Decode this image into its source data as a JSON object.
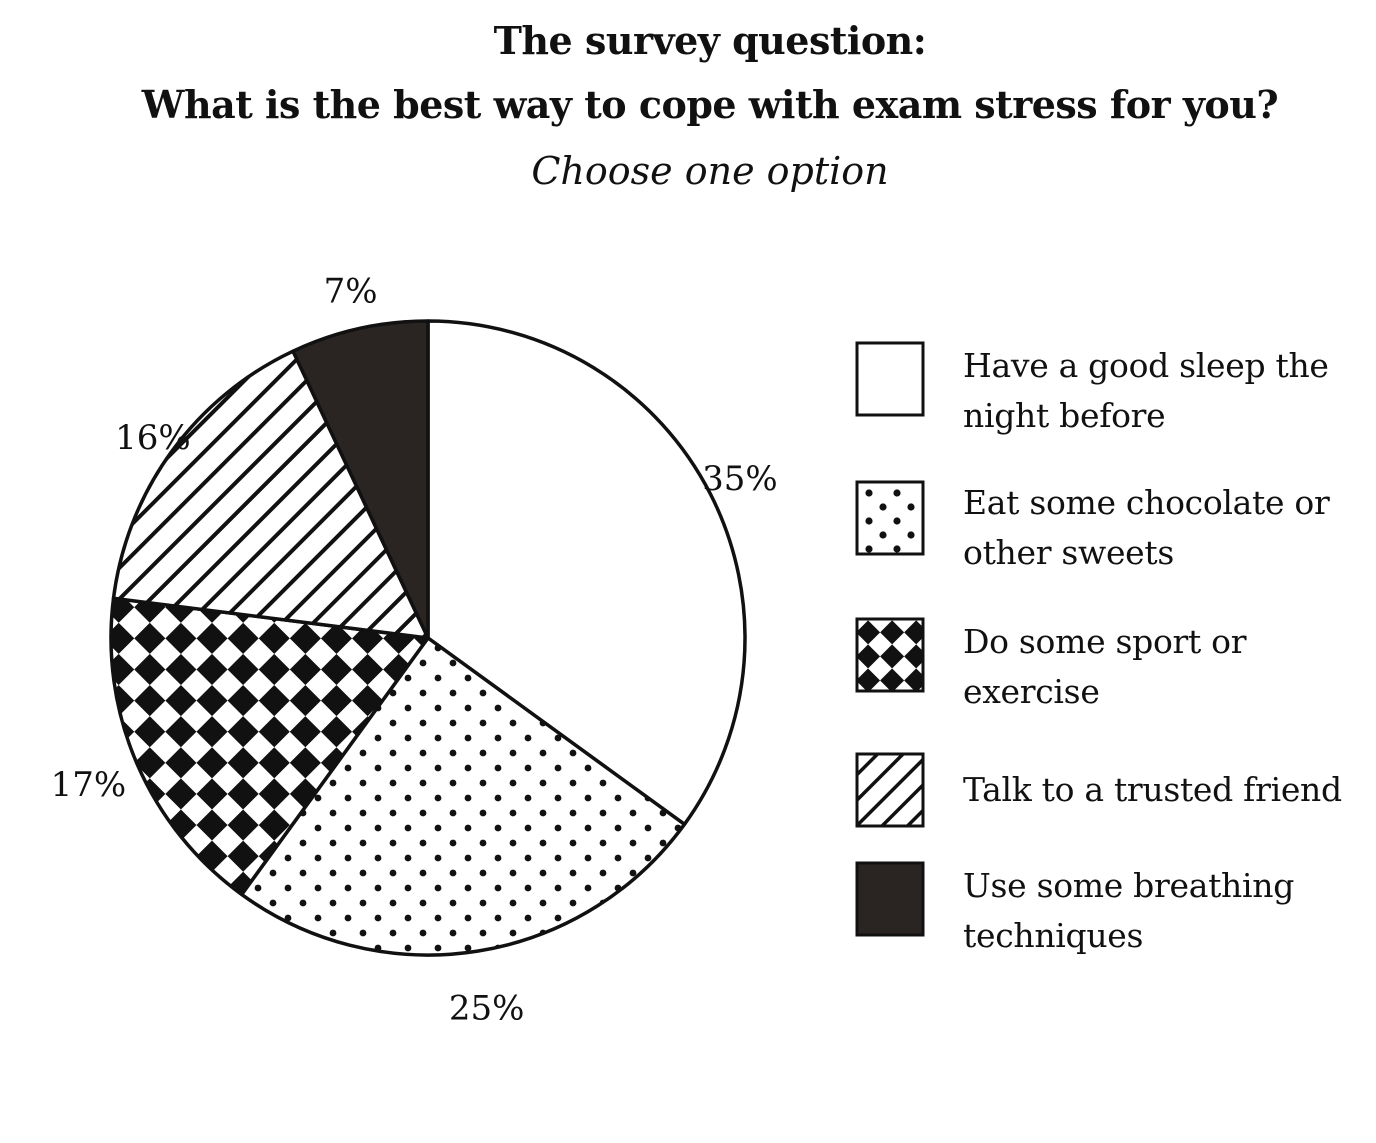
{
  "header": {
    "title_line1": "The survey question:",
    "title_line2": "What is the best way to cope with exam stress for you?",
    "subtitle": "Choose one option"
  },
  "chart_data": {
    "type": "pie",
    "title": "The survey question: What is the best way to cope with exam stress for you?",
    "subtitle": "Choose one option",
    "start": "12 o'clock",
    "direction": "clockwise",
    "legend_position": "right",
    "slices": [
      {
        "label": "Have a good sleep the night before",
        "value": 35,
        "value_label": "35%",
        "pattern": "white",
        "color": "#ffffff"
      },
      {
        "label": "Eat some chocolate or other sweets",
        "value": 25,
        "value_label": "25%",
        "pattern": "dots",
        "color": "#111111"
      },
      {
        "label": "Do some sport or exercise",
        "value": 17,
        "value_label": "17%",
        "pattern": "checkerboard",
        "color": "#111111"
      },
      {
        "label": "Talk to a trusted friend",
        "value": 16,
        "value_label": "16%",
        "pattern": "diagonal-stripes",
        "color": "#111111"
      },
      {
        "label": "Use some breathing techniques",
        "value": 7,
        "value_label": "7%",
        "pattern": "solid-dark",
        "color": "#2a2523"
      }
    ]
  },
  "legend": {
    "items": [
      {
        "line1": "Have a good sleep the",
        "line2": "night before"
      },
      {
        "line1": "Eat some chocolate or",
        "line2": "other sweets"
      },
      {
        "line1": "Do some sport or",
        "line2": "exercise"
      },
      {
        "line1": "Talk to a trusted friend",
        "line2": ""
      },
      {
        "line1": "Use some breathing",
        "line2": "techniques"
      }
    ]
  }
}
